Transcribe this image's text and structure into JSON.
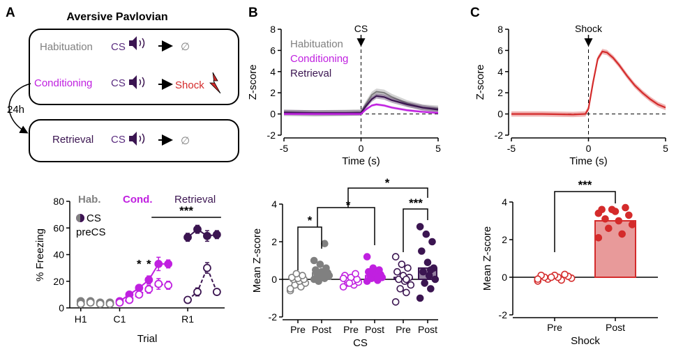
{
  "panel_letters": [
    "A",
    "B",
    "C"
  ],
  "colors": {
    "habituation": "#808080",
    "conditioning": "#c020e0",
    "retrieval": "#3b1551",
    "cs_purple": "#5b2d80",
    "shock": "#d42b2b",
    "shock_bar": "#e89a9a"
  },
  "schematic": {
    "title": "Aversive Pavlovian",
    "delay_label": "24h",
    "rows": [
      {
        "phase": "Habituation",
        "cs": "CS",
        "outcome": "∅"
      },
      {
        "phase": "Conditioning",
        "cs": "CS",
        "outcome": "Shock"
      },
      {
        "phase": "Retrieval",
        "cs": "CS",
        "outcome": "∅"
      }
    ],
    "icons": [
      "speaker-icon",
      "arrow-icon",
      "lightning-icon",
      "null-icon"
    ]
  },
  "labels": {
    "hab_short": "Hab.",
    "cond_short": "Cond.",
    "retrieval": "Retrieval",
    "cs": "CS",
    "precs": "preCS",
    "habituation": "Habituation",
    "conditioning": "Conditioning",
    "shock": "Shock",
    "star1": "*",
    "star3": "***"
  },
  "chart_data": [
    {
      "id": "A-freezing",
      "type": "line",
      "xlabel": "Trial",
      "ylabel": "% Freezing",
      "ylim": [
        0,
        80
      ],
      "yticks": [
        0,
        20,
        40,
        60,
        80
      ],
      "xtick_labels": [
        {
          "label": "H1",
          "trial": 1
        },
        {
          "label": "C1",
          "trial": 5
        },
        {
          "label": "R1",
          "trial": 12
        }
      ],
      "series": [
        {
          "name": "Hab. CS",
          "group": "habituation",
          "marker": "filled",
          "x": [
            1,
            2,
            3,
            4
          ],
          "y": [
            5,
            5,
            4,
            4
          ],
          "err": [
            1,
            1,
            1,
            1
          ]
        },
        {
          "name": "Hab. preCS",
          "group": "habituation",
          "marker": "open",
          "x": [
            1,
            2,
            3,
            4
          ],
          "y": [
            3,
            4,
            3,
            3
          ],
          "err": [
            1,
            1,
            1,
            1
          ]
        },
        {
          "name": "Cond. CS",
          "group": "conditioning",
          "marker": "filled",
          "x": [
            5,
            6,
            7,
            8,
            9,
            10
          ],
          "y": [
            5,
            10,
            15,
            21,
            33,
            33
          ],
          "err": [
            1.5,
            2,
            2,
            3,
            5,
            3
          ]
        },
        {
          "name": "Cond. preCS",
          "group": "conditioning",
          "marker": "open",
          "x": [
            5,
            6,
            7,
            8,
            9,
            10
          ],
          "y": [
            4,
            6,
            10,
            14,
            18,
            17
          ],
          "err": [
            1,
            1,
            2,
            3,
            4,
            3
          ]
        },
        {
          "name": "Retrieval CS",
          "group": "retrieval",
          "marker": "filled",
          "x": [
            12,
            13,
            14,
            15
          ],
          "y": [
            53,
            59,
            54,
            55
          ],
          "err": [
            3,
            3,
            4,
            3
          ]
        },
        {
          "name": "Retrieval preCS",
          "group": "retrieval",
          "marker": "open",
          "x": [
            12,
            13,
            14,
            15
          ],
          "y": [
            6,
            12,
            30,
            12
          ],
          "err": [
            1,
            3,
            4,
            2
          ]
        }
      ],
      "significance": [
        {
          "text": "*",
          "trial": 7
        },
        {
          "text": "*",
          "trial": 8
        },
        {
          "text": "***",
          "from_trial": 9,
          "to_trial": 15
        }
      ]
    },
    {
      "id": "B-trace",
      "type": "line",
      "xlabel": "Time (s)",
      "ylabel": "Z-score",
      "xlim": [
        -5,
        5
      ],
      "ylim": [
        -2,
        8
      ],
      "xticks": [
        -5,
        0,
        5
      ],
      "yticks": [
        -2,
        0,
        2,
        4,
        6,
        8
      ],
      "event_label": "CS",
      "legend": [
        "Habituation",
        "Conditioning",
        "Retrieval"
      ],
      "series": [
        {
          "name": "Habituation",
          "group": "habituation",
          "x": [
            -5,
            -3,
            -1,
            0,
            0.3,
            0.7,
            1.0,
            1.5,
            2,
            3,
            4,
            5
          ],
          "y": [
            0.1,
            0.05,
            0.1,
            0.15,
            0.9,
            1.8,
            2.1,
            2.0,
            1.6,
            1.0,
            0.6,
            0.5
          ],
          "band": 0.3
        },
        {
          "name": "Retrieval",
          "group": "retrieval",
          "x": [
            -5,
            -3,
            -1,
            0,
            0.3,
            0.7,
            1.0,
            1.5,
            2,
            3,
            4,
            5
          ],
          "y": [
            0.15,
            0.1,
            0.1,
            0.1,
            0.7,
            1.4,
            1.7,
            1.6,
            1.3,
            0.9,
            0.6,
            0.4
          ],
          "band": 0.25
        },
        {
          "name": "Conditioning",
          "group": "conditioning",
          "x": [
            -5,
            -3,
            -1,
            0,
            0.3,
            0.7,
            1.0,
            1.5,
            2,
            3,
            4,
            5
          ],
          "y": [
            0,
            0,
            0,
            0,
            0.4,
            0.8,
            0.9,
            0.8,
            0.6,
            0.35,
            0.2,
            0.1
          ],
          "band": 0.12
        }
      ]
    },
    {
      "id": "B-bars",
      "type": "bar",
      "title": "CS",
      "ylabel": "Mean Z-score",
      "ylim": [
        -2,
        4
      ],
      "yticks": [
        -2,
        0,
        2,
        4
      ],
      "categories": [
        "Pre",
        "Post",
        "Pre",
        "Post",
        "Pre",
        "Post"
      ],
      "groups": [
        "habituation",
        "habituation",
        "conditioning",
        "conditioning",
        "retrieval",
        "retrieval"
      ],
      "filled": [
        false,
        true,
        false,
        true,
        false,
        true
      ],
      "means": [
        0.0,
        0.35,
        0.0,
        0.2,
        0.1,
        0.6
      ],
      "points": [
        [
          -0.6,
          -0.4,
          -0.3,
          -0.2,
          -0.1,
          0.0,
          0.0,
          0.05,
          0.1,
          0.2,
          0.3,
          -0.5
        ],
        [
          0.0,
          0.05,
          0.1,
          0.2,
          0.25,
          0.3,
          0.35,
          0.4,
          0.5,
          0.6,
          0.8,
          1.0,
          1.9,
          -0.1
        ],
        [
          -0.4,
          -0.3,
          -0.2,
          -0.15,
          -0.1,
          0.0,
          0.0,
          0.1,
          0.2,
          0.3,
          -0.2,
          0.05
        ],
        [
          -0.1,
          0.0,
          0.05,
          0.1,
          0.15,
          0.2,
          0.25,
          0.3,
          0.4,
          0.5,
          0.6,
          1.2,
          -0.05
        ],
        [
          -1.2,
          -0.7,
          -0.5,
          -0.3,
          -0.1,
          0.0,
          0.1,
          0.2,
          0.4,
          0.6,
          0.8,
          1.2,
          0.0
        ],
        [
          -1.0,
          -0.5,
          -0.2,
          0.0,
          0.2,
          0.4,
          0.6,
          0.9,
          1.5,
          2.0,
          2.4,
          2.8,
          0.5
        ]
      ],
      "significance": [
        {
          "text": "*",
          "from": 0,
          "to": 1
        },
        {
          "text": "*",
          "from": 1,
          "to": 3
        },
        {
          "text": "***",
          "from": 4,
          "to": 5
        },
        {
          "text": "*",
          "from": 1,
          "to": 5
        }
      ]
    },
    {
      "id": "C-trace",
      "type": "line",
      "xlabel": "Time (s)",
      "ylabel": "Z-score",
      "xlim": [
        -5,
        5
      ],
      "ylim": [
        -2,
        8
      ],
      "xticks": [
        -5,
        0,
        5
      ],
      "yticks": [
        -2,
        0,
        2,
        4,
        6,
        8
      ],
      "event_label": "Shock",
      "series": [
        {
          "name": "Shock",
          "group": "shock",
          "x": [
            -5,
            -3,
            -1,
            -0.2,
            0,
            0.3,
            0.6,
            0.9,
            1.2,
            1.6,
            2,
            2.5,
            3,
            3.5,
            4,
            4.5,
            5
          ],
          "y": [
            0,
            0,
            -0.05,
            0,
            0.5,
            3.0,
            5.2,
            5.9,
            5.8,
            5.3,
            4.6,
            3.6,
            2.7,
            2.0,
            1.4,
            0.9,
            0.6
          ],
          "band": 0.25
        }
      ]
    },
    {
      "id": "C-bars",
      "type": "bar",
      "title": "Shock",
      "ylabel": "Mean Z-score",
      "ylim": [
        -2,
        4
      ],
      "yticks": [
        -2,
        0,
        2,
        4
      ],
      "categories": [
        "Pre",
        "Post"
      ],
      "filled": [
        false,
        true
      ],
      "means": [
        0.0,
        3.0
      ],
      "points": [
        [
          -0.2,
          -0.15,
          -0.1,
          -0.05,
          0.0,
          0.0,
          0.05,
          0.1,
          0.1,
          0.15,
          0.0,
          -0.1
        ],
        [
          2.1,
          2.3,
          2.6,
          2.8,
          3.0,
          3.1,
          3.3,
          3.5,
          3.6,
          3.7,
          3.6,
          3.4
        ]
      ],
      "significance": [
        {
          "text": "***",
          "from": 0,
          "to": 1
        }
      ]
    }
  ]
}
